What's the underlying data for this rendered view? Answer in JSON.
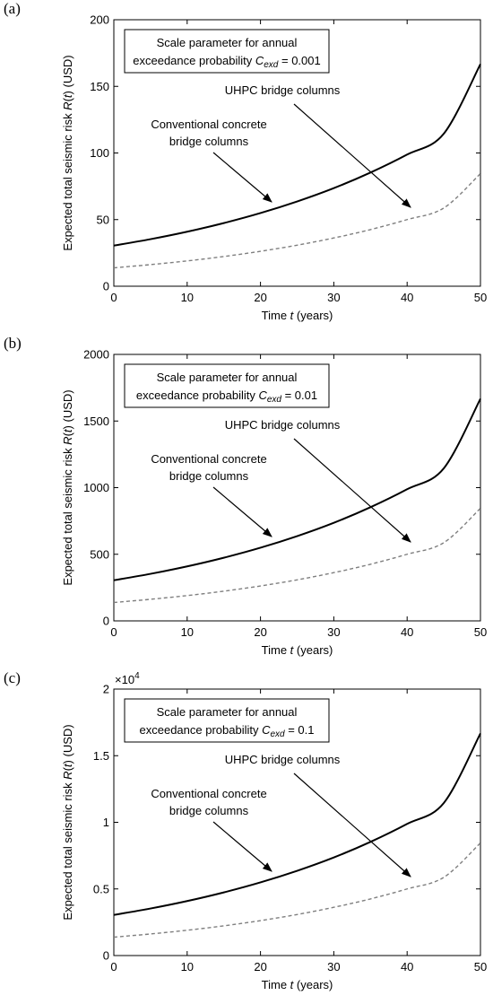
{
  "chart_data": [
    {
      "panel": "(a)",
      "type": "line",
      "box_lines": [
        "Scale parameter for annual",
        "exceedance probability ",
        "C",
        "exd",
        " = 0.001"
      ],
      "xlabel": [
        "Time ",
        "t",
        " (years)"
      ],
      "ylabel": [
        "Expected total seismic risk ",
        "R",
        "(",
        "t",
        ") (USD)"
      ],
      "xlim": [
        0,
        50
      ],
      "ylim": [
        0,
        200
      ],
      "xticks": [
        0,
        10,
        20,
        30,
        40,
        50
      ],
      "yticks": [
        0,
        50,
        100,
        150,
        200
      ],
      "ytick_labels": [
        "0",
        "50",
        "100",
        "150",
        "200"
      ],
      "exponent": "",
      "series": [
        {
          "label": "Conventional concrete bridge columns",
          "style": "solid",
          "color": "#000000",
          "x": [
            0,
            5,
            10,
            15,
            20,
            25,
            30,
            35,
            40,
            45,
            50
          ],
          "y": [
            30.5,
            35.3,
            40.9,
            47.4,
            54.9,
            63.6,
            73.6,
            85.3,
            98.8,
            114.5,
            166.7
          ]
        },
        {
          "label": "UHPC bridge columns",
          "style": "dashed",
          "color": "#7f7f7f",
          "x": [
            0,
            5,
            10,
            15,
            20,
            25,
            30,
            35,
            40,
            45,
            50
          ],
          "y": [
            13.8,
            16.2,
            19.0,
            22.3,
            26.2,
            30.8,
            36.2,
            42.5,
            50.0,
            58.7,
            84.5
          ]
        }
      ],
      "annotations": {
        "uhpc": "UHPC bridge columns",
        "conv_line1": "Conventional concrete",
        "conv_line2": "bridge columns"
      }
    },
    {
      "panel": "(b)",
      "type": "line",
      "box_lines": [
        "Scale parameter for annual",
        "exceedance probability ",
        "C",
        "exd",
        " = 0.01"
      ],
      "xlabel": [
        "Time ",
        "t",
        " (years)"
      ],
      "ylabel": [
        "Expected total seismic risk ",
        "R",
        "(",
        "t",
        ") (USD)"
      ],
      "xlim": [
        0,
        50
      ],
      "ylim": [
        0,
        2000
      ],
      "xticks": [
        0,
        10,
        20,
        30,
        40,
        50
      ],
      "yticks": [
        0,
        500,
        1000,
        1500,
        2000
      ],
      "ytick_labels": [
        "0",
        "500",
        "1000",
        "1500",
        "2000"
      ],
      "exponent": "",
      "series": [
        {
          "label": "Conventional concrete bridge columns",
          "style": "solid",
          "color": "#000000",
          "x": [
            0,
            5,
            10,
            15,
            20,
            25,
            30,
            35,
            40,
            45,
            50
          ],
          "y": [
            305,
            353,
            409,
            474,
            549,
            636,
            736,
            853,
            988,
            1145,
            1667
          ]
        },
        {
          "label": "UHPC bridge columns",
          "style": "dashed",
          "color": "#7f7f7f",
          "x": [
            0,
            5,
            10,
            15,
            20,
            25,
            30,
            35,
            40,
            45,
            50
          ],
          "y": [
            138,
            162,
            190,
            223,
            262,
            308,
            362,
            425,
            500,
            587,
            845
          ]
        }
      ],
      "annotations": {
        "uhpc": "UHPC bridge columns",
        "conv_line1": "Conventional concrete",
        "conv_line2": "bridge columns"
      }
    },
    {
      "panel": "(c)",
      "type": "line",
      "box_lines": [
        "Scale parameter for annual",
        "exceedance probability ",
        "C",
        "exd",
        " = 0.1"
      ],
      "xlabel": [
        "Time ",
        "t",
        " (years)"
      ],
      "ylabel": [
        "Expected total seismic risk ",
        "R",
        "(",
        "t",
        ") (USD)"
      ],
      "xlim": [
        0,
        50
      ],
      "ylim": [
        0,
        2
      ],
      "xticks": [
        0,
        10,
        20,
        30,
        40,
        50
      ],
      "yticks": [
        0,
        0.5,
        1,
        1.5,
        2
      ],
      "ytick_labels": [
        "0",
        "0.5",
        "1",
        "1.5",
        "2"
      ],
      "exponent": [
        "×10",
        "4"
      ],
      "series": [
        {
          "label": "Conventional concrete bridge columns",
          "style": "solid",
          "color": "#000000",
          "x": [
            0,
            5,
            10,
            15,
            20,
            25,
            30,
            35,
            40,
            45,
            50
          ],
          "y": [
            0.305,
            0.353,
            0.409,
            0.474,
            0.549,
            0.636,
            0.736,
            0.853,
            0.988,
            1.145,
            1.667
          ]
        },
        {
          "label": "UHPC bridge columns",
          "style": "dashed",
          "color": "#7f7f7f",
          "x": [
            0,
            5,
            10,
            15,
            20,
            25,
            30,
            35,
            40,
            45,
            50
          ],
          "y": [
            0.138,
            0.162,
            0.19,
            0.223,
            0.262,
            0.308,
            0.362,
            0.425,
            0.5,
            0.587,
            0.845
          ]
        }
      ],
      "annotations": {
        "uhpc": "UHPC bridge columns",
        "conv_line1": "Conventional concrete",
        "conv_line2": "bridge columns"
      }
    }
  ]
}
